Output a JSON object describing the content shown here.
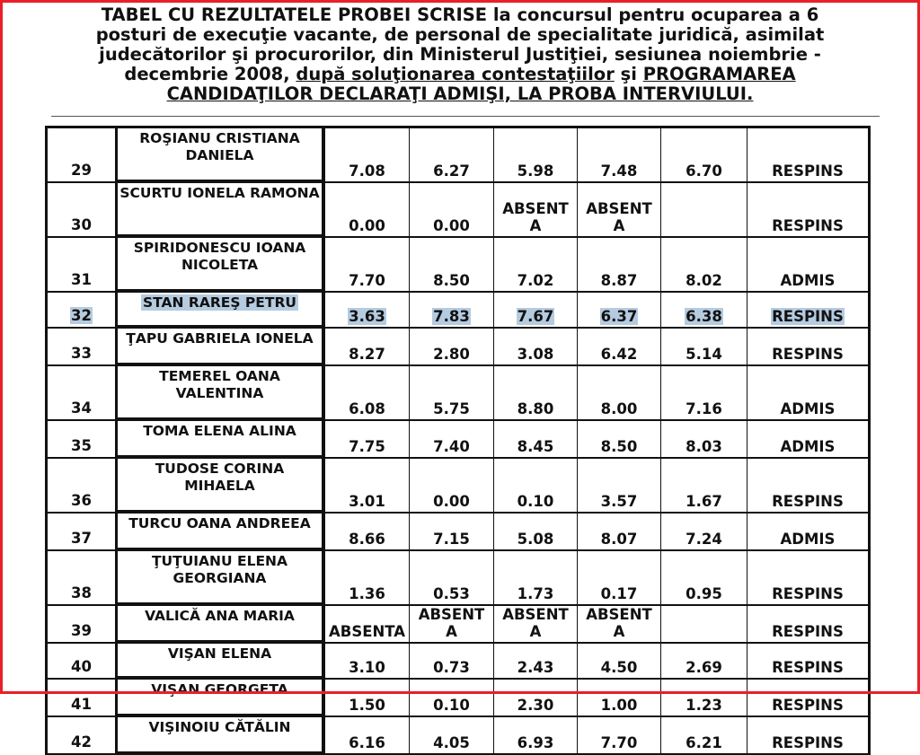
{
  "header": {
    "line1": "TABEL CU REZULTATELE PROBEI SCRISE  la concursul pentru ocuparea a 6",
    "line2": "posturi de execuţie vacante, de personal de specialitate juridică, asimilat",
    "line3": "judecătorilor şi procurorilor, din Ministerul Justiţiei, sesiunea noiembrie -",
    "line4_plain": "decembrie 2008, ",
    "line4_u1": "după soluţionarea contestaţiilor",
    "line4_mid": " şi ",
    "line4_u2": "PROGRAMAREA",
    "line5_u": "CANDIDAŢILOR DECLARAŢI ADMIŞI,  LA PROBA INTERVIULUI. "
  },
  "highlight_color": "#b5cbe0",
  "frame_color": "#e8202a",
  "rows": [
    {
      "no": "29",
      "name": "ROŞIANU CRISTIANA DANIELA",
      "s1": "7.08",
      "s2": "6.27",
      "s3": "5.98",
      "s4": "7.48",
      "avg": "6.70",
      "result": "RESPINS"
    },
    {
      "no": "30",
      "name": "SCURTU IONELA RAMONA",
      "s1": "0.00",
      "s2": "0.00",
      "s3": "ABSENT A",
      "s4": "ABSENT A",
      "avg": "",
      "result": "RESPINS"
    },
    {
      "no": "31",
      "name": "SPIRIDONESCU IOANA NICOLETA",
      "s1": "7.70",
      "s2": "8.50",
      "s3": "7.02",
      "s4": "8.87",
      "avg": "8.02",
      "result": "ADMIS"
    },
    {
      "no": "32",
      "name": "STAN RAREŞ PETRU",
      "s1": "3.63",
      "s2": "7.83",
      "s3": "7.67",
      "s4": "6.37",
      "avg": "6.38",
      "result": "RESPINS"
    },
    {
      "no": "33",
      "name": "ŢAPU GABRIELA IONELA",
      "s1": "8.27",
      "s2": "2.80",
      "s3": "3.08",
      "s4": "6.42",
      "avg": "5.14",
      "result": "RESPINS"
    },
    {
      "no": "34",
      "name": "TEMEREL OANA VALENTINA",
      "s1": "6.08",
      "s2": "5.75",
      "s3": "8.80",
      "s4": "8.00",
      "avg": "7.16",
      "result": "ADMIS"
    },
    {
      "no": "35",
      "name": "TOMA ELENA ALINA",
      "s1": "7.75",
      "s2": "7.40",
      "s3": "8.45",
      "s4": "8.50",
      "avg": "8.03",
      "result": "ADMIS"
    },
    {
      "no": "36",
      "name": "TUDOSE CORINA MIHAELA",
      "s1": "3.01",
      "s2": "0.00",
      "s3": "0.10",
      "s4": "3.57",
      "avg": "1.67",
      "result": "RESPINS"
    },
    {
      "no": "37",
      "name": "TURCU  OANA ANDREEA",
      "s1": "8.66",
      "s2": "7.15",
      "s3": "5.08",
      "s4": "8.07",
      "avg": "7.24",
      "result": "ADMIS"
    },
    {
      "no": "38",
      "name": "ŢUŢUIANU ELENA GEORGIANA",
      "s1": "1.36",
      "s2": "0.53",
      "s3": "1.73",
      "s4": "0.17",
      "avg": "0.95",
      "result": "RESPINS"
    },
    {
      "no": "39",
      "name": "VALICĂ ANA MARIA",
      "s1": "ABSENTA",
      "s2": "ABSENT A",
      "s3": "ABSENT A",
      "s4": "ABSENT A",
      "avg": "",
      "result": "RESPINS"
    },
    {
      "no": "40",
      "name": "VIŞAN ELENA",
      "s1": "3.10",
      "s2": "0.73",
      "s3": "2.43",
      "s4": "4.50",
      "avg": "2.69",
      "result": "RESPINS"
    },
    {
      "no": "41",
      "name": "VIŞAN GEORGETA",
      "s1": "1.50",
      "s2": "0.10",
      "s3": "2.30",
      "s4": "1.00",
      "avg": "1.23",
      "result": "RESPINS"
    },
    {
      "no": "42",
      "name": "VIŞINOIU CĂTĂLIN",
      "s1": "6.16",
      "s2": "4.05",
      "s3": "6.93",
      "s4": "7.70",
      "avg": "6.21",
      "result": "RESPINS"
    }
  ]
}
